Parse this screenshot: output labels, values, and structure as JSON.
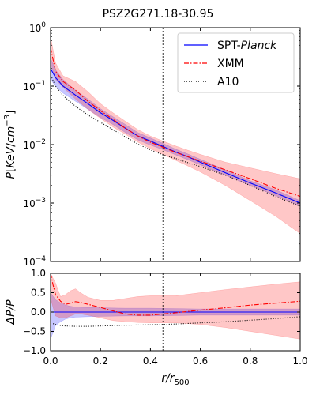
{
  "chart_data": [
    {
      "type": "line",
      "panel": "top",
      "title": "PSZ2G271.18-30.95",
      "xlabel": "",
      "ylabel": "P[KeV/cm^-3]",
      "xlim": [
        0,
        1
      ],
      "ylim": [
        0.0001,
        1
      ],
      "yscale": "log",
      "grid": false,
      "legend": "top-right",
      "x_ticks": [
        0,
        0.2,
        0.4,
        0.6,
        0.8,
        1.0
      ],
      "y_ticks": [
        0.0001,
        0.001,
        0.01,
        0.1,
        1
      ],
      "y_tick_labels": [
        {
          "base": "10",
          "exp": "−4"
        },
        {
          "base": "10",
          "exp": "−3"
        },
        {
          "base": "10",
          "exp": "−2"
        },
        {
          "base": "10",
          "exp": "−1"
        },
        {
          "base": "10",
          "exp": "0"
        }
      ],
      "vline_x": 0.45,
      "series": [
        {
          "name": "SPT-Planck",
          "legend_label": "SPT-",
          "legend_italic": "Planck",
          "color": "#0000ff",
          "style": "solid",
          "x": [
            0.0,
            0.02,
            0.05,
            0.1,
            0.15,
            0.2,
            0.25,
            0.3,
            0.35,
            0.4,
            0.45,
            0.5,
            0.55,
            0.6,
            0.7,
            0.8,
            0.9,
            1.0
          ],
          "values": [
            0.2,
            0.14,
            0.1,
            0.07,
            0.05,
            0.035,
            0.026,
            0.019,
            0.014,
            0.0115,
            0.0093,
            0.0075,
            0.0062,
            0.005,
            0.0033,
            0.0022,
            0.0015,
            0.001
          ],
          "band_lower": [
            0.13,
            0.1,
            0.076,
            0.055,
            0.04,
            0.029,
            0.022,
            0.016,
            0.012,
            0.0098,
            0.0082,
            0.0067,
            0.0055,
            0.0045,
            0.003,
            0.002,
            0.00135,
            0.0009
          ],
          "band_upper": [
            0.3,
            0.19,
            0.13,
            0.085,
            0.06,
            0.041,
            0.03,
            0.022,
            0.016,
            0.013,
            0.0105,
            0.0084,
            0.0069,
            0.0056,
            0.0037,
            0.0024,
            0.0017,
            0.0011
          ]
        },
        {
          "name": "XMM",
          "color": "#ff0000",
          "style": "dashdot",
          "x": [
            0.0,
            0.02,
            0.05,
            0.1,
            0.15,
            0.2,
            0.25,
            0.3,
            0.35,
            0.4,
            0.45,
            0.5,
            0.55,
            0.6,
            0.7,
            0.8,
            0.9,
            1.0
          ],
          "values": [
            0.45,
            0.18,
            0.12,
            0.085,
            0.055,
            0.038,
            0.027,
            0.019,
            0.014,
            0.011,
            0.009,
            0.0074,
            0.0062,
            0.0052,
            0.0037,
            0.0026,
            0.0018,
            0.0013
          ],
          "band_lower": [
            0.25,
            0.13,
            0.095,
            0.06,
            0.04,
            0.028,
            0.02,
            0.015,
            0.011,
            0.0085,
            0.0068,
            0.0054,
            0.0043,
            0.0034,
            0.002,
            0.0011,
            0.0006,
            0.0003
          ],
          "band_upper": [
            0.7,
            0.25,
            0.15,
            0.12,
            0.08,
            0.05,
            0.035,
            0.025,
            0.018,
            0.014,
            0.0115,
            0.0095,
            0.008,
            0.0068,
            0.005,
            0.004,
            0.0032,
            0.0026
          ]
        },
        {
          "name": "A10",
          "color": "#000000",
          "style": "dotted",
          "x": [
            0.005,
            0.02,
            0.05,
            0.1,
            0.15,
            0.2,
            0.25,
            0.3,
            0.35,
            0.4,
            0.45,
            0.5,
            0.55,
            0.6,
            0.7,
            0.8,
            0.9,
            1.0
          ],
          "values": [
            0.14,
            0.1,
            0.069,
            0.045,
            0.032,
            0.024,
            0.018,
            0.0135,
            0.0102,
            0.0081,
            0.0067,
            0.0058,
            0.0049,
            0.0042,
            0.003,
            0.002,
            0.0013,
            0.00088
          ]
        }
      ]
    },
    {
      "type": "line",
      "panel": "bottom",
      "xlabel": "r/r500",
      "xlabel_main": "r/r",
      "xlabel_sub": "500",
      "ylabel": "ΔP/P",
      "xlim": [
        0,
        1
      ],
      "ylim": [
        -1,
        1
      ],
      "grid": false,
      "x_ticks": [
        0,
        0.2,
        0.4,
        0.6,
        0.8,
        1.0
      ],
      "x_tick_labels": [
        "0.0",
        "0.2",
        "0.4",
        "0.6",
        "0.8",
        "1.0"
      ],
      "y_ticks": [
        -1,
        -0.5,
        0,
        0.5,
        1
      ],
      "y_tick_labels": [
        "−1.0",
        "−0.5",
        "0.0",
        "0.5",
        "1.0"
      ],
      "vline_x": 0.45,
      "series": [
        {
          "name": "SPT-Planck",
          "color": "#0000ff",
          "style": "solid",
          "x": [
            0.0,
            1.0
          ],
          "values": [
            0.0,
            0.0
          ],
          "band_x": [
            0.0,
            0.02,
            0.04,
            0.06,
            0.08,
            0.1,
            0.15,
            0.2,
            0.3,
            0.4,
            0.5,
            0.6,
            0.8,
            1.0
          ],
          "band_lower": [
            -0.7,
            -0.35,
            -0.25,
            -0.18,
            -0.15,
            -0.13,
            -0.12,
            -0.11,
            -0.1,
            -0.1,
            -0.09,
            -0.08,
            -0.08,
            -0.08
          ],
          "band_upper": [
            0.5,
            0.32,
            0.24,
            0.18,
            0.15,
            0.13,
            0.12,
            0.11,
            0.1,
            0.1,
            0.09,
            0.08,
            0.08,
            0.08
          ]
        },
        {
          "name": "XMM",
          "color": "#ff0000",
          "style": "dashdot",
          "x": [
            0.0,
            0.01,
            0.02,
            0.04,
            0.06,
            0.08,
            0.1,
            0.12,
            0.15,
            0.2,
            0.25,
            0.3,
            0.35,
            0.4,
            0.45,
            0.5,
            0.6,
            0.7,
            0.8,
            0.9,
            1.0
          ],
          "values": [
            1.0,
            0.7,
            0.45,
            0.28,
            0.2,
            0.23,
            0.27,
            0.25,
            0.2,
            0.12,
            0.03,
            -0.05,
            -0.08,
            -0.08,
            -0.05,
            -0.02,
            0.05,
            0.11,
            0.18,
            0.23,
            0.28
          ],
          "band_x": [
            0.0,
            0.02,
            0.04,
            0.06,
            0.08,
            0.1,
            0.12,
            0.15,
            0.2,
            0.25,
            0.3,
            0.35,
            0.4,
            0.45,
            0.5,
            0.6,
            0.7,
            0.8,
            0.9,
            1.0
          ],
          "band_lower": [
            0.35,
            -0.1,
            -0.15,
            -0.15,
            -0.1,
            -0.05,
            -0.05,
            -0.08,
            -0.15,
            -0.22,
            -0.25,
            -0.27,
            -0.28,
            -0.28,
            -0.28,
            -0.32,
            -0.4,
            -0.5,
            -0.6,
            -0.7
          ],
          "band_upper": [
            1.0,
            0.75,
            0.4,
            0.45,
            0.55,
            0.6,
            0.5,
            0.38,
            0.3,
            0.3,
            0.35,
            0.4,
            0.42,
            0.42,
            0.42,
            0.5,
            0.58,
            0.65,
            0.72,
            0.78
          ]
        },
        {
          "name": "A10",
          "color": "#000000",
          "style": "dotted",
          "x": [
            0.01,
            0.03,
            0.06,
            0.1,
            0.15,
            0.2,
            0.3,
            0.4,
            0.5,
            0.6,
            0.7,
            0.8,
            0.9,
            1.0
          ],
          "values": [
            -0.3,
            -0.34,
            -0.36,
            -0.37,
            -0.37,
            -0.36,
            -0.34,
            -0.33,
            -0.31,
            -0.28,
            -0.25,
            -0.21,
            -0.17,
            -0.12
          ]
        }
      ]
    }
  ]
}
